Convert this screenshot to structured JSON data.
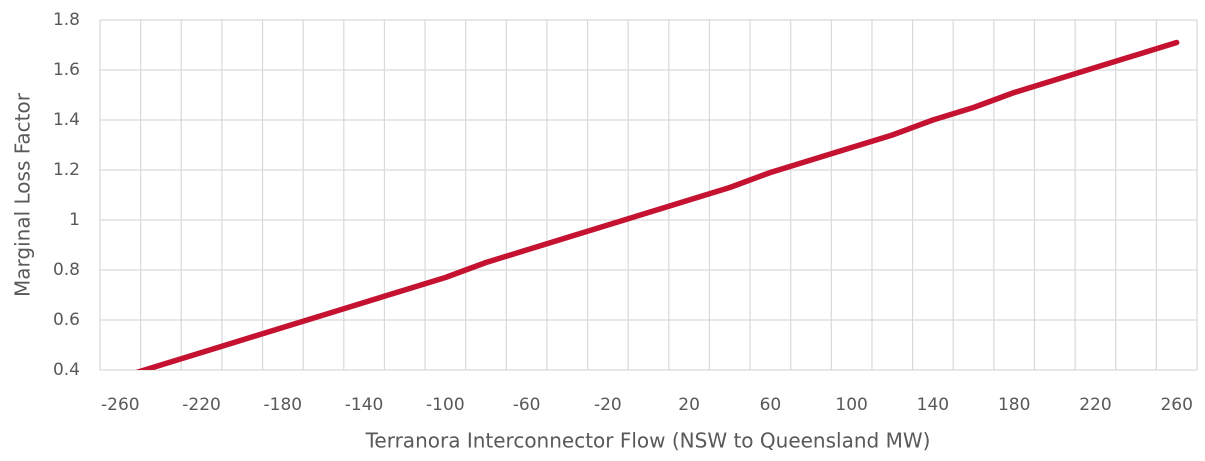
{
  "chart_data": {
    "type": "line",
    "x_label": "Terranora Interconnector Flow (NSW to Queensland MW)",
    "y_label": "Marginal Loss Factor",
    "categories": [
      "-260",
      null,
      "-220",
      null,
      "-180",
      null,
      "-140",
      null,
      "-100",
      null,
      "-60",
      null,
      "-20",
      null,
      "20",
      null,
      "60",
      null,
      "100",
      null,
      "140",
      null,
      "180",
      null,
      "220",
      null,
      "260"
    ],
    "series": [
      {
        "color": "#c41230",
        "values": [
          0.37,
          0.42,
          0.47,
          0.52,
          0.57,
          0.62,
          0.67,
          0.72,
          0.77,
          0.83,
          0.88,
          0.93,
          0.98,
          1.03,
          1.08,
          1.13,
          1.19,
          1.24,
          1.29,
          1.34,
          1.4,
          1.45,
          1.51,
          1.56,
          1.61,
          1.66,
          1.71
        ]
      }
    ],
    "ylim": [
      0.4,
      1.8
    ],
    "yticks": [
      0.4,
      0.6,
      0.8,
      1,
      1.2,
      1.4,
      1.6,
      1.8
    ],
    "grid": true
  }
}
